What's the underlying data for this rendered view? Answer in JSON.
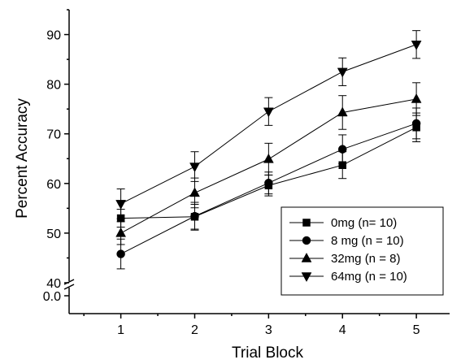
{
  "chart_data": {
    "type": "line",
    "title": "",
    "xlabel": "Trial Block",
    "ylabel": "Percent Accuracy",
    "x": [
      1,
      2,
      3,
      4,
      5
    ],
    "x_ticks": [
      "1",
      "2",
      "3",
      "4",
      "5"
    ],
    "xlim": [
      0.3,
      5.45
    ],
    "ylim": [
      40,
      95
    ],
    "y_ticks": [
      "40",
      "50",
      "60",
      "70",
      "80",
      "90"
    ],
    "y_break": true,
    "y_break_lower_label": "0.0",
    "grid": false,
    "legend_position": "bottom-right",
    "series": [
      {
        "name": "0mg (n= 10)",
        "marker": "square",
        "values": [
          53.0,
          53.3,
          59.6,
          63.7,
          71.3
        ],
        "errors": [
          1.8,
          2.5,
          2.1,
          2.7,
          2.9
        ]
      },
      {
        "name": "8 mg (n = 10)",
        "marker": "circle",
        "values": [
          45.8,
          53.4,
          60.1,
          66.9,
          72.1
        ],
        "errors": [
          3.0,
          2.8,
          2.2,
          2.9,
          3.1
        ]
      },
      {
        "name": "32mg (n = 8)",
        "marker": "triangle-up",
        "values": [
          50.0,
          58.1,
          64.9,
          74.3,
          77.0
        ],
        "errors": [
          2.3,
          3.0,
          3.2,
          3.4,
          3.3
        ]
      },
      {
        "name": "64mg (n = 10)",
        "marker": "triangle-down",
        "values": [
          55.9,
          63.4,
          74.5,
          82.5,
          88.0
        ],
        "errors": [
          3.0,
          3.0,
          2.8,
          2.8,
          2.8
        ]
      }
    ]
  }
}
